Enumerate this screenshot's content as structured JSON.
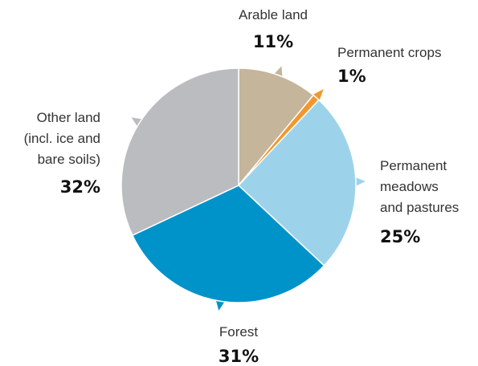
{
  "chart_data": {
    "type": "pie",
    "categories": [
      "Arable land",
      "Permanent crops",
      "Permanent\nmeadows\nand pastures",
      "Forest",
      "Other land\n(incl. ice and\nbare soils)"
    ],
    "values": [
      11,
      1,
      25,
      31,
      32
    ],
    "value_labels": [
      "11%",
      "1%",
      "25%",
      "31%",
      "32%"
    ],
    "colors": [
      "#c4b59b",
      "#f0982f",
      "#9dd3ea",
      "#0093c9",
      "#bbbcbf"
    ]
  }
}
